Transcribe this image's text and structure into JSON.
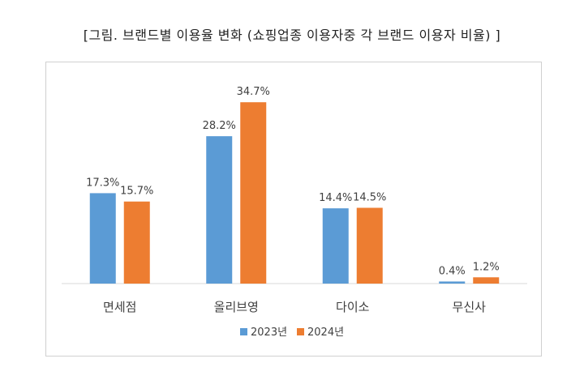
{
  "chart_data": {
    "type": "bar",
    "title": "[그림. 브랜드별 이용율 변화 (쇼핑업종 이용자중 각 브랜드 이용자 비율) ]",
    "categories": [
      "면세점",
      "올리브영",
      "다이소",
      "무신사"
    ],
    "series": [
      {
        "name": "2023년",
        "values": [
          17.3,
          28.2,
          14.4,
          0.4
        ],
        "labels": [
          "17.3%",
          "28.2%",
          "14.4%",
          "0.4%"
        ]
      },
      {
        "name": "2024년",
        "values": [
          15.7,
          34.7,
          14.5,
          1.2
        ],
        "labels": [
          "15.7%",
          "34.7%",
          "14.5%",
          "1.2%"
        ]
      }
    ],
    "xlabel": "",
    "ylabel": "",
    "ylim": [
      0,
      35
    ],
    "grid": false,
    "legend": "bottom"
  },
  "colors": {
    "series_2023": "#5b9bd5",
    "series_2024": "#ed7d31"
  }
}
